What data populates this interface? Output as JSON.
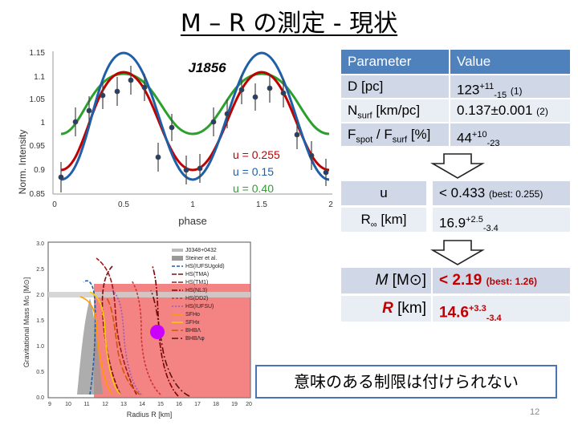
{
  "title": "M – R の測定 - 現状",
  "lightcurve": {
    "label": "J1856",
    "ylabel": "Norm. Intensity",
    "xlabel": "phase",
    "yticks": [
      "1.15",
      "1.1",
      "1.05",
      "1",
      "0.95",
      "0.9",
      "0.85"
    ],
    "xticks": [
      "0",
      "0.5",
      "1",
      "1.5",
      "2"
    ],
    "u_labels": [
      "u = 0.255",
      "u = 0.15",
      "u = 0.40"
    ],
    "u_colors": [
      "#c00000",
      "#1f5fa8",
      "#2ca02c"
    ]
  },
  "table1": {
    "headers": [
      "Parameter",
      "Value"
    ],
    "rows": [
      {
        "param": "D [pc]",
        "val_main": "123",
        "val_sup": "+11",
        "val_sub": "-15",
        "note": "(1)"
      },
      {
        "param_main": "N",
        "param_sub": "surf",
        "param_rest": " [km/pc]",
        "val": "0.137±0.001",
        "note": "(2)"
      },
      {
        "p1": "F",
        "p1_sub": "spot",
        "p2": " / F",
        "p2_sub": "surf",
        "p3": " [%]",
        "val_main": "44",
        "val_sup": "+10",
        "val_sub": "-23"
      }
    ]
  },
  "table2": {
    "rows": [
      {
        "param": "u",
        "val": "< 0.433",
        "note": "(best: 0.255)"
      },
      {
        "param_main": "R",
        "param_sub": "∞",
        "param_rest": " [km]",
        "val_main": "16.9",
        "val_sup": "+2.5",
        "val_sub": "-3.4"
      }
    ]
  },
  "table3": {
    "rows": [
      {
        "param_main": "M",
        "param_rest": " [M",
        "param_sym": "⊙",
        "param_end": "]",
        "val": "< 2.19",
        "note": "(best: 1.26)"
      },
      {
        "param_main": "R",
        "param_rest": " [km]",
        "val_main": "14.6",
        "val_sup": "+3.3",
        "val_sub": "-3.4"
      }
    ]
  },
  "mr_plot": {
    "ylabel": "Gravitational Mass M",
    "ylabel_sub": "G",
    "ylabel_unit": " [M",
    "ylabel_sym": "⊙",
    "ylabel_end": "]",
    "xlabel": "Radius R [km]",
    "xticks": [
      "9",
      "10",
      "11",
      "12",
      "13",
      "14",
      "15",
      "16",
      "17",
      "18",
      "19",
      "20"
    ],
    "yticks": [
      "3.0",
      "2.5",
      "2.0",
      "1.5",
      "1.0",
      "0.5",
      "0.0"
    ],
    "legend": [
      "J0348+0432",
      "Steiner et al.",
      "HS(IUFSUgold)",
      "HS(TMA)",
      "HS(TM1)",
      "HS(NL3)",
      "HS(DD2)",
      "HS(IUFSU)",
      "SFHo",
      "SFHx",
      "BHBΛ",
      "BHBΛφ"
    ]
  },
  "conclusion": "意味のある制限は付けられない",
  "page_number": "12"
}
